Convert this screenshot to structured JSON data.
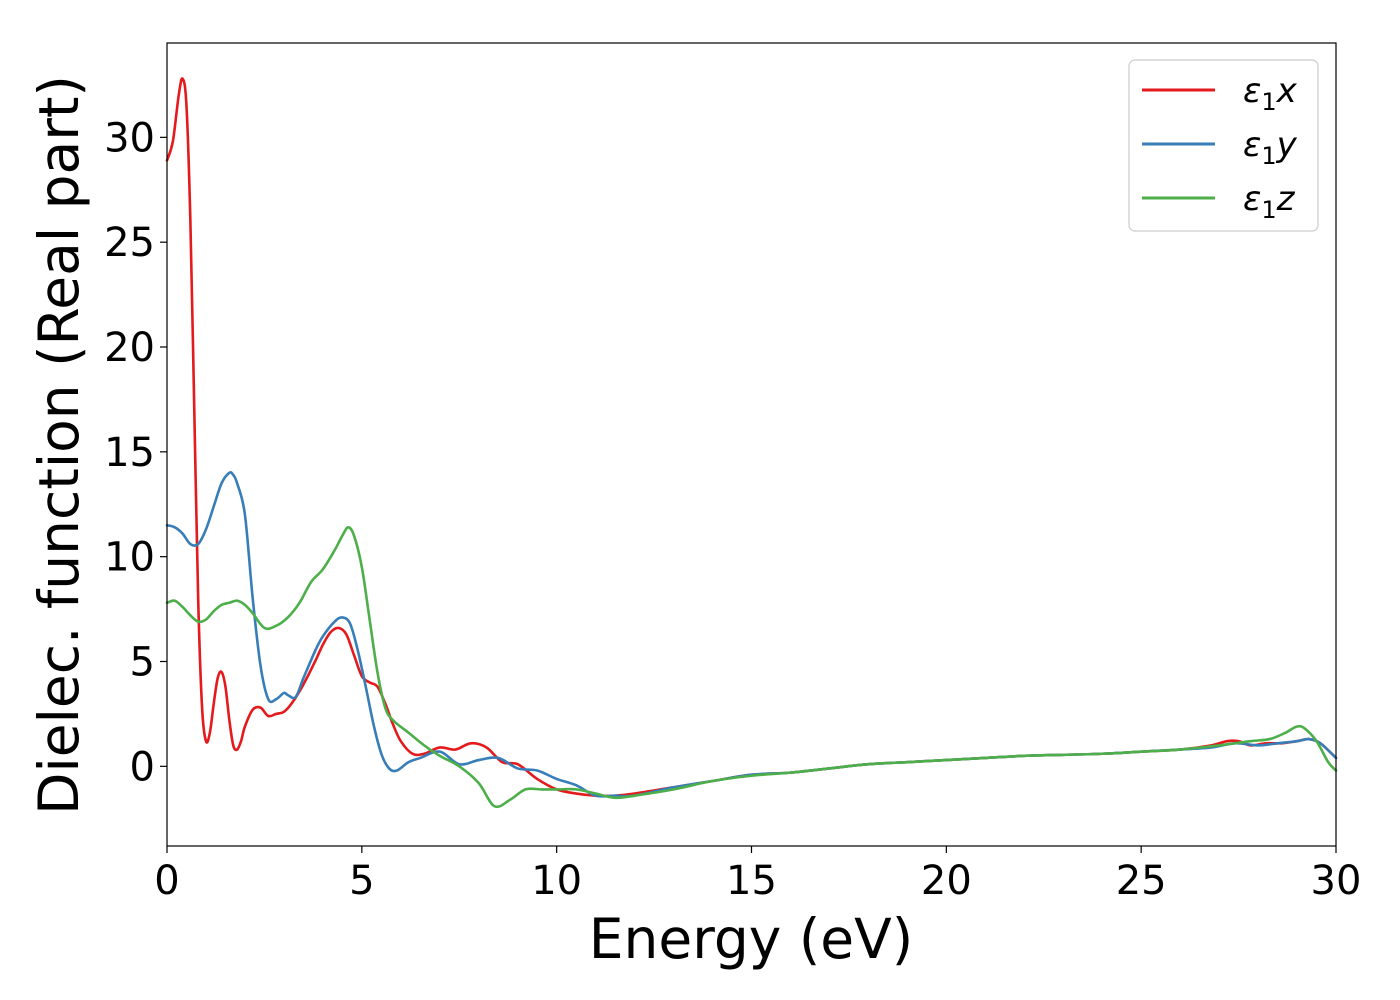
{
  "chart_data": {
    "type": "line",
    "xlabel": "Energy (eV)",
    "ylabel": "Dielec. function (Real part)",
    "xlim": [
      0,
      30
    ],
    "ylim": [
      -3.8,
      34.5
    ],
    "xticks": [
      0,
      5,
      10,
      15,
      20,
      25,
      30
    ],
    "xtick_labels": [
      "0",
      "5",
      "10",
      "15",
      "20",
      "25",
      "30"
    ],
    "yticks": [
      0,
      5,
      10,
      15,
      20,
      25,
      30
    ],
    "ytick_labels": [
      "0",
      "5",
      "10",
      "15",
      "20",
      "25",
      "30"
    ],
    "grid": false,
    "legend_position": "top-right",
    "series": [
      {
        "name": "ε₁x",
        "legend_label": "ε",
        "legend_sub": "1",
        "legend_suffix": "x",
        "color": "#e41a1c",
        "x": [
          0,
          0.15,
          0.3,
          0.4,
          0.5,
          0.6,
          0.7,
          0.8,
          0.9,
          1.0,
          1.1,
          1.2,
          1.3,
          1.4,
          1.5,
          1.6,
          1.7,
          1.8,
          1.9,
          2.0,
          2.2,
          2.4,
          2.6,
          2.8,
          3.0,
          3.2,
          3.5,
          3.8,
          4.0,
          4.2,
          4.4,
          4.6,
          4.8,
          5.0,
          5.2,
          5.4,
          5.6,
          5.8,
          6.0,
          6.3,
          6.6,
          7.0,
          7.4,
          7.8,
          8.2,
          8.6,
          9.0,
          9.5,
          10.0,
          10.5,
          11.0,
          11.5,
          12.0,
          13.0,
          14.0,
          15.0,
          16.0,
          17.0,
          18.0,
          19.0,
          20.0,
          21.0,
          22.0,
          23.0,
          24.0,
          25.0,
          26.0,
          26.8,
          27.2,
          27.5,
          27.8,
          28.2,
          28.6,
          29.0,
          29.3,
          29.6,
          30.0
        ],
        "values": [
          28.9,
          29.8,
          32.0,
          32.8,
          31.5,
          26.0,
          17.0,
          8.0,
          2.8,
          1.2,
          1.6,
          3.0,
          4.2,
          4.5,
          3.8,
          2.2,
          1.0,
          0.8,
          1.2,
          1.9,
          2.7,
          2.8,
          2.4,
          2.5,
          2.6,
          3.0,
          3.9,
          5.0,
          5.8,
          6.4,
          6.6,
          6.3,
          5.3,
          4.3,
          4.0,
          3.8,
          3.0,
          2.0,
          1.2,
          0.6,
          0.6,
          0.9,
          0.8,
          1.1,
          0.9,
          0.2,
          0.1,
          -0.6,
          -1.1,
          -1.3,
          -1.4,
          -1.4,
          -1.3,
          -1.0,
          -0.7,
          -0.4,
          -0.3,
          -0.1,
          0.1,
          0.2,
          0.3,
          0.4,
          0.5,
          0.55,
          0.6,
          0.7,
          0.8,
          1.0,
          1.2,
          1.2,
          1.0,
          1.1,
          1.1,
          1.2,
          1.3,
          1.1,
          0.4
        ]
      },
      {
        "name": "ε₁y",
        "legend_label": "ε",
        "legend_sub": "1",
        "legend_suffix": "y",
        "color": "#377eb8",
        "x": [
          0,
          0.2,
          0.4,
          0.6,
          0.8,
          1.0,
          1.2,
          1.4,
          1.6,
          1.7,
          1.8,
          2.0,
          2.2,
          2.4,
          2.6,
          2.8,
          3.0,
          3.1,
          3.3,
          3.5,
          3.8,
          4.0,
          4.3,
          4.5,
          4.7,
          4.9,
          5.1,
          5.3,
          5.5,
          5.7,
          5.9,
          6.2,
          6.5,
          7.0,
          7.5,
          8.0,
          8.5,
          9.0,
          9.5,
          10.0,
          10.5,
          11.0,
          11.5,
          12.0,
          13.0,
          14.0,
          15.0,
          16.0,
          17.0,
          18.0,
          19.0,
          20.0,
          21.0,
          22.0,
          23.0,
          24.0,
          25.0,
          26.0,
          26.8,
          27.4,
          28.0,
          28.5,
          29.0,
          29.3,
          29.6,
          30.0
        ],
        "values": [
          11.5,
          11.4,
          11.1,
          10.6,
          10.6,
          11.3,
          12.4,
          13.5,
          14.0,
          13.9,
          13.5,
          12.0,
          8.0,
          4.8,
          3.2,
          3.2,
          3.5,
          3.4,
          3.3,
          4.2,
          5.5,
          6.2,
          6.9,
          7.1,
          6.8,
          5.5,
          3.8,
          2.0,
          0.6,
          -0.1,
          -0.2,
          0.2,
          0.4,
          0.7,
          0.1,
          0.3,
          0.4,
          -0.1,
          -0.2,
          -0.6,
          -0.9,
          -1.4,
          -1.4,
          -1.4,
          -1.0,
          -0.7,
          -0.4,
          -0.3,
          -0.1,
          0.1,
          0.2,
          0.3,
          0.4,
          0.5,
          0.55,
          0.6,
          0.7,
          0.8,
          0.9,
          1.1,
          1.0,
          1.1,
          1.2,
          1.3,
          1.1,
          0.4
        ]
      },
      {
        "name": "ε₁z",
        "legend_label": "ε",
        "legend_sub": "1",
        "legend_suffix": "z",
        "color": "#4daf4a",
        "x": [
          0,
          0.2,
          0.4,
          0.6,
          0.8,
          1.0,
          1.2,
          1.4,
          1.6,
          1.8,
          2.0,
          2.2,
          2.5,
          2.8,
          3.1,
          3.4,
          3.7,
          4.0,
          4.3,
          4.5,
          4.65,
          4.8,
          5.0,
          5.2,
          5.4,
          5.6,
          5.8,
          6.2,
          6.6,
          7.0,
          7.5,
          8.0,
          8.4,
          8.8,
          9.2,
          9.6,
          10.0,
          10.5,
          11.0,
          11.5,
          12.0,
          13.0,
          14.0,
          15.0,
          16.0,
          17.0,
          18.0,
          19.0,
          20.0,
          21.0,
          22.0,
          23.0,
          24.0,
          25.0,
          26.0,
          27.0,
          27.8,
          28.3,
          28.7,
          29.0,
          29.2,
          29.5,
          29.8,
          30.0
        ],
        "values": [
          7.8,
          7.9,
          7.6,
          7.2,
          6.9,
          7.0,
          7.4,
          7.7,
          7.8,
          7.9,
          7.7,
          7.3,
          6.6,
          6.7,
          7.1,
          7.8,
          8.8,
          9.4,
          10.3,
          11.0,
          11.4,
          11.0,
          9.5,
          7.0,
          4.5,
          2.8,
          2.2,
          1.6,
          1.0,
          0.5,
          0.0,
          -0.8,
          -1.9,
          -1.6,
          -1.1,
          -1.1,
          -1.1,
          -1.1,
          -1.3,
          -1.5,
          -1.4,
          -1.1,
          -0.7,
          -0.45,
          -0.3,
          -0.1,
          0.1,
          0.2,
          0.3,
          0.4,
          0.5,
          0.55,
          0.6,
          0.7,
          0.8,
          1.0,
          1.2,
          1.3,
          1.6,
          1.9,
          1.8,
          1.2,
          0.2,
          -0.2
        ]
      }
    ]
  }
}
